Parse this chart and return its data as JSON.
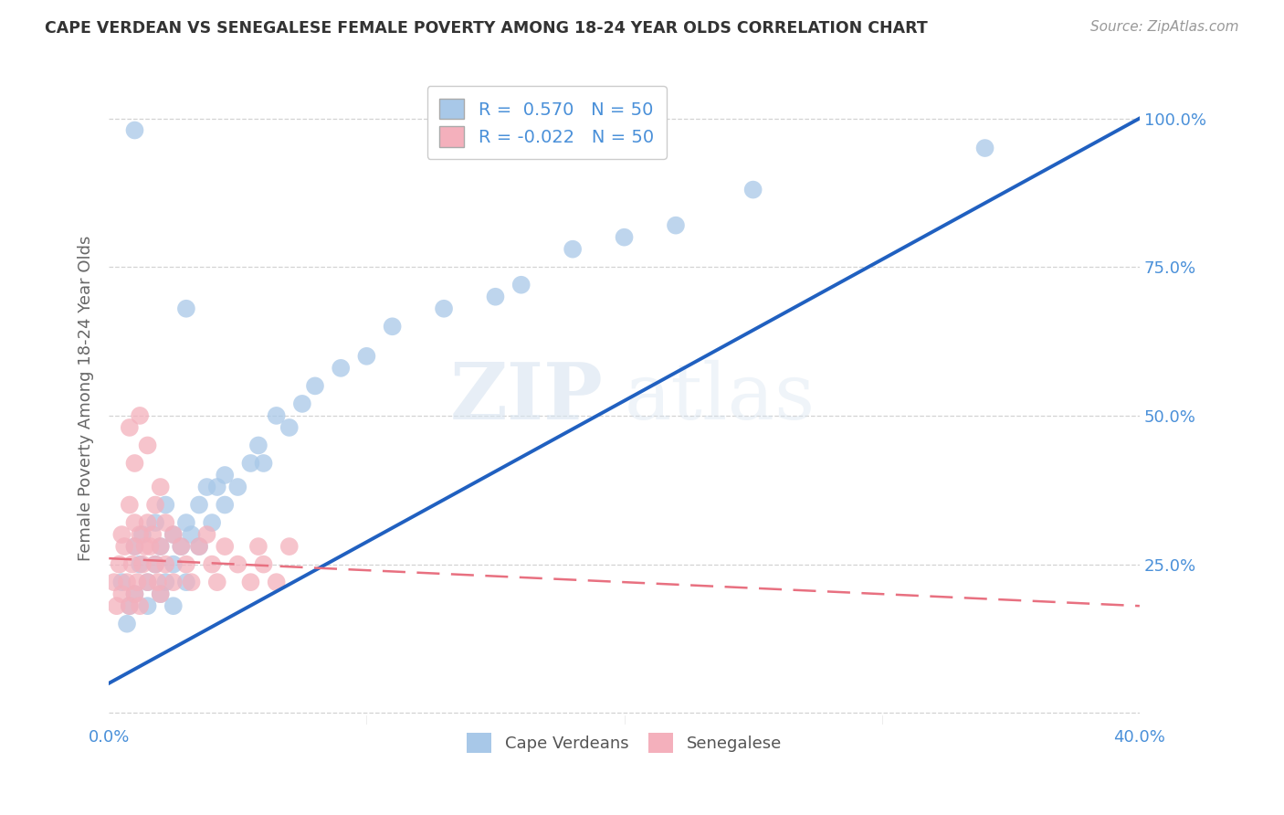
{
  "title": "CAPE VERDEAN VS SENEGALESE FEMALE POVERTY AMONG 18-24 YEAR OLDS CORRELATION CHART",
  "source": "Source: ZipAtlas.com",
  "ylabel": "Female Poverty Among 18-24 Year Olds",
  "xlim": [
    0.0,
    0.4
  ],
  "ylim": [
    -0.02,
    1.08
  ],
  "cv_color": "#a8c8e8",
  "sen_color": "#f4b0bc",
  "cv_line_color": "#2060c0",
  "sen_line_color": "#e87080",
  "watermark_zip": "ZIP",
  "watermark_atlas": "atlas",
  "background_color": "#ffffff",
  "grid_color": "#c8c8c8",
  "title_color": "#333333",
  "axis_label_color": "#666666",
  "tick_color": "#4a90d9",
  "cv_scatter_x": [
    0.005,
    0.007,
    0.008,
    0.01,
    0.01,
    0.012,
    0.013,
    0.015,
    0.015,
    0.018,
    0.018,
    0.02,
    0.02,
    0.022,
    0.022,
    0.025,
    0.025,
    0.025,
    0.028,
    0.03,
    0.03,
    0.032,
    0.035,
    0.035,
    0.038,
    0.04,
    0.042,
    0.045,
    0.045,
    0.05,
    0.055,
    0.058,
    0.06,
    0.065,
    0.07,
    0.075,
    0.08,
    0.09,
    0.1,
    0.11,
    0.13,
    0.15,
    0.16,
    0.18,
    0.2,
    0.22,
    0.25,
    0.03,
    0.34,
    0.01
  ],
  "cv_scatter_y": [
    0.22,
    0.15,
    0.18,
    0.28,
    0.2,
    0.25,
    0.3,
    0.22,
    0.18,
    0.32,
    0.25,
    0.28,
    0.2,
    0.35,
    0.22,
    0.3,
    0.18,
    0.25,
    0.28,
    0.32,
    0.22,
    0.3,
    0.35,
    0.28,
    0.38,
    0.32,
    0.38,
    0.35,
    0.4,
    0.38,
    0.42,
    0.45,
    0.42,
    0.5,
    0.48,
    0.52,
    0.55,
    0.58,
    0.6,
    0.65,
    0.68,
    0.7,
    0.72,
    0.78,
    0.8,
    0.82,
    0.88,
    0.68,
    0.95,
    0.98
  ],
  "sen_scatter_x": [
    0.002,
    0.003,
    0.004,
    0.005,
    0.005,
    0.006,
    0.007,
    0.008,
    0.008,
    0.009,
    0.01,
    0.01,
    0.01,
    0.011,
    0.012,
    0.012,
    0.013,
    0.014,
    0.015,
    0.015,
    0.016,
    0.017,
    0.018,
    0.018,
    0.019,
    0.02,
    0.02,
    0.022,
    0.022,
    0.025,
    0.025,
    0.028,
    0.03,
    0.032,
    0.035,
    0.038,
    0.04,
    0.042,
    0.045,
    0.05,
    0.055,
    0.058,
    0.06,
    0.065,
    0.07,
    0.008,
    0.01,
    0.012,
    0.015,
    0.02
  ],
  "sen_scatter_y": [
    0.22,
    0.18,
    0.25,
    0.2,
    0.3,
    0.28,
    0.22,
    0.35,
    0.18,
    0.25,
    0.28,
    0.2,
    0.32,
    0.22,
    0.3,
    0.18,
    0.25,
    0.28,
    0.32,
    0.22,
    0.28,
    0.3,
    0.25,
    0.35,
    0.22,
    0.28,
    0.2,
    0.32,
    0.25,
    0.3,
    0.22,
    0.28,
    0.25,
    0.22,
    0.28,
    0.3,
    0.25,
    0.22,
    0.28,
    0.25,
    0.22,
    0.28,
    0.25,
    0.22,
    0.28,
    0.48,
    0.42,
    0.5,
    0.45,
    0.38
  ],
  "cv_line_x0": 0.0,
  "cv_line_y0": 0.05,
  "cv_line_x1": 0.4,
  "cv_line_y1": 1.0,
  "sen_line_x0": 0.0,
  "sen_line_y0": 0.26,
  "sen_line_x1": 0.4,
  "sen_line_y1": 0.18
}
